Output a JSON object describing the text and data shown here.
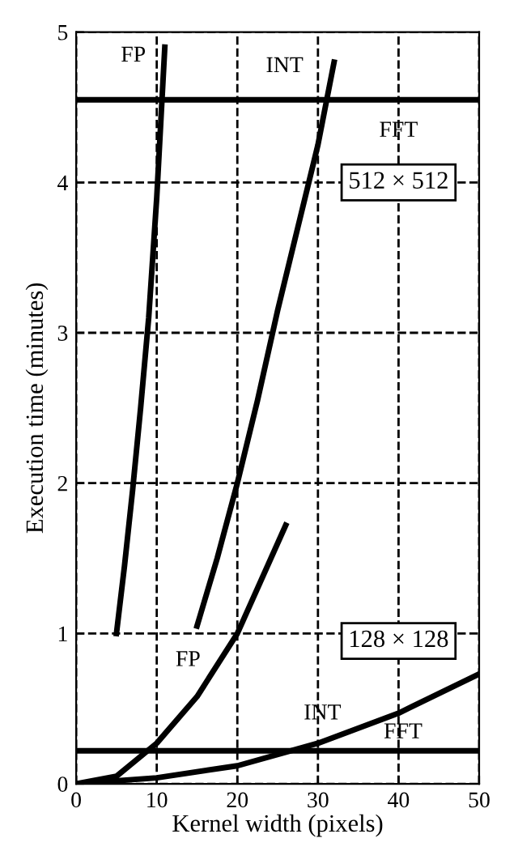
{
  "chart_data": {
    "type": "line",
    "xlabel": "Kernel width (pixels)",
    "ylabel": "Execution time (minutes)",
    "xlim": [
      0,
      50
    ],
    "ylim": [
      0,
      5
    ],
    "xticks": [
      0,
      10,
      20,
      30,
      40,
      50
    ],
    "yticks": [
      0,
      1,
      2,
      3,
      4,
      5
    ],
    "grid": true,
    "marker": "none",
    "line_style": "solid",
    "series": [
      {
        "color": "#000000",
        "x": [
          5,
          6,
          7,
          8,
          9,
          10,
          11
        ],
        "values": [
          1.0,
          1.45,
          1.95,
          2.5,
          3.1,
          3.9,
          4.9
        ]
      },
      {
        "color": "#000000",
        "x": [
          15,
          17.5,
          20,
          22.5,
          25,
          27.5,
          30,
          32
        ],
        "values": [
          1.05,
          1.5,
          2.0,
          2.55,
          3.15,
          3.7,
          4.25,
          4.8
        ]
      },
      {
        "color": "#000000",
        "x": [
          0,
          50
        ],
        "values": [
          4.55,
          4.55
        ]
      },
      {
        "color": "#000000",
        "x": [
          0,
          5,
          10,
          15,
          20,
          26
        ],
        "values": [
          0,
          0.05,
          0.27,
          0.58,
          1.0,
          1.72
        ]
      },
      {
        "color": "#000000",
        "x": [
          0,
          10,
          20,
          30,
          40,
          50
        ],
        "values": [
          0,
          0.04,
          0.12,
          0.27,
          0.47,
          0.73
        ]
      },
      {
        "color": "#000000",
        "x": [
          0,
          50
        ],
        "values": [
          0.22,
          0.22
        ]
      }
    ],
    "annotations": [
      {
        "text": "FP",
        "x": 11,
        "y": 4.9
      },
      {
        "text": "INT",
        "x": 32,
        "y": 4.8
      },
      {
        "text": "FFT",
        "x": 40,
        "y": 4.55
      },
      "512 × 512",
      "128 × 128",
      {
        "text": "FP",
        "x": 15,
        "y": 0.58
      },
      {
        "text": "INT",
        "x": 30,
        "y": 0.27
      },
      {
        "text": "FFT",
        "x": 40,
        "y": 0.22
      }
    ]
  }
}
